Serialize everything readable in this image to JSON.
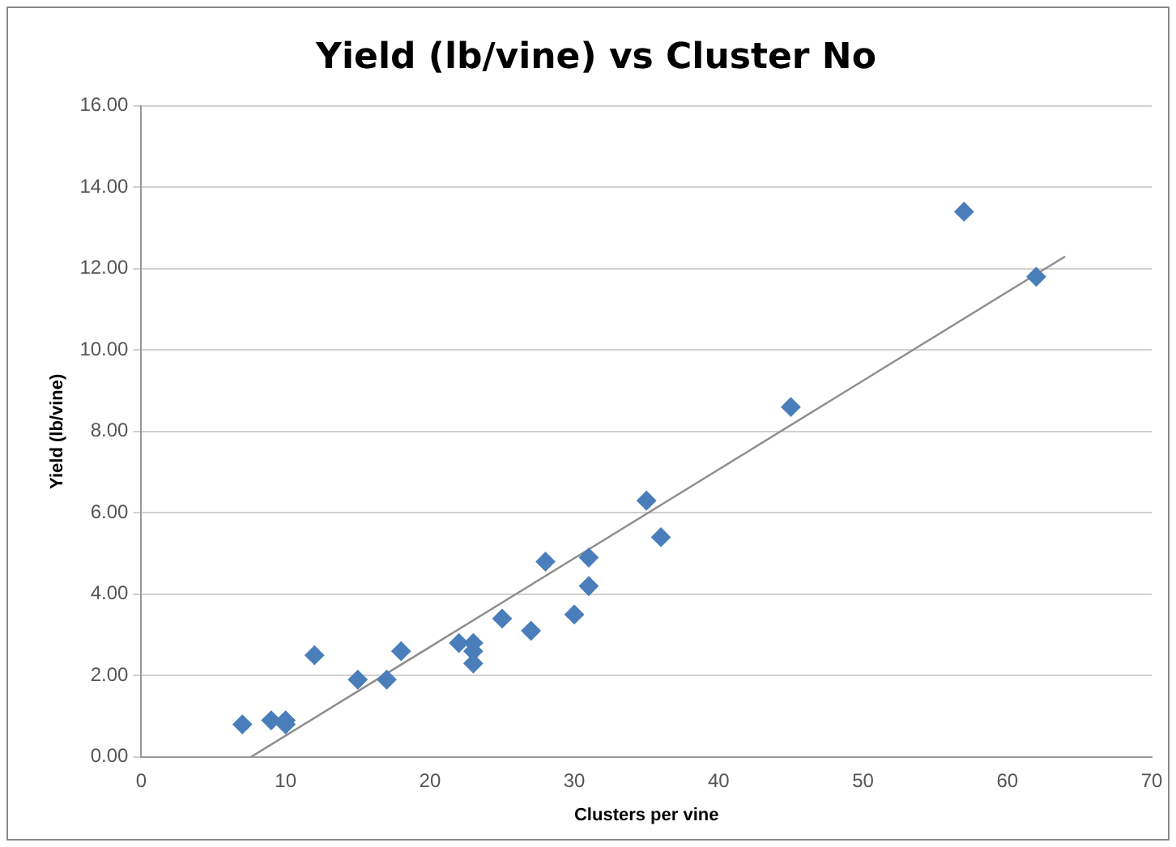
{
  "chart_data": {
    "type": "scatter",
    "title": "Yield (lb/vine) vs Cluster No",
    "xlabel": "Clusters per vine",
    "ylabel": "Yield (lb/vine)",
    "xlim": [
      0,
      70
    ],
    "xticks": [
      0,
      10,
      20,
      30,
      40,
      50,
      60,
      70
    ],
    "ylim": [
      0,
      16
    ],
    "yticks": [
      {
        "value": 0,
        "label": "0.00"
      },
      {
        "value": 2,
        "label": "2.00"
      },
      {
        "value": 4,
        "label": "4.00"
      },
      {
        "value": 6,
        "label": "6.00"
      },
      {
        "value": 8,
        "label": "8.00"
      },
      {
        "value": 10,
        "label": "10.00"
      },
      {
        "value": 12,
        "label": "12.00"
      },
      {
        "value": 14,
        "label": "14.00"
      },
      {
        "value": 16,
        "label": "16.00"
      }
    ],
    "grid": "y",
    "legend": false,
    "marker": "diamond",
    "series": [
      {
        "type": "scatter",
        "color": "#4a7ebb",
        "x": [
          7,
          9,
          10,
          10,
          12,
          15,
          17,
          18,
          22,
          23,
          23,
          23,
          25,
          27,
          28,
          30,
          31,
          31,
          35,
          36,
          45,
          57,
          62
        ],
        "values": [
          0.8,
          0.9,
          0.9,
          0.8,
          2.5,
          1.9,
          1.9,
          2.6,
          2.8,
          2.8,
          2.6,
          2.3,
          3.4,
          3.1,
          4.8,
          3.5,
          4.9,
          4.2,
          6.3,
          5.4,
          8.6,
          13.4,
          11.8
        ]
      },
      {
        "type": "line",
        "color": "#8c8c8c",
        "marker": "none",
        "x": [
          7.6,
          64
        ],
        "values": [
          0,
          12.3
        ]
      }
    ]
  }
}
